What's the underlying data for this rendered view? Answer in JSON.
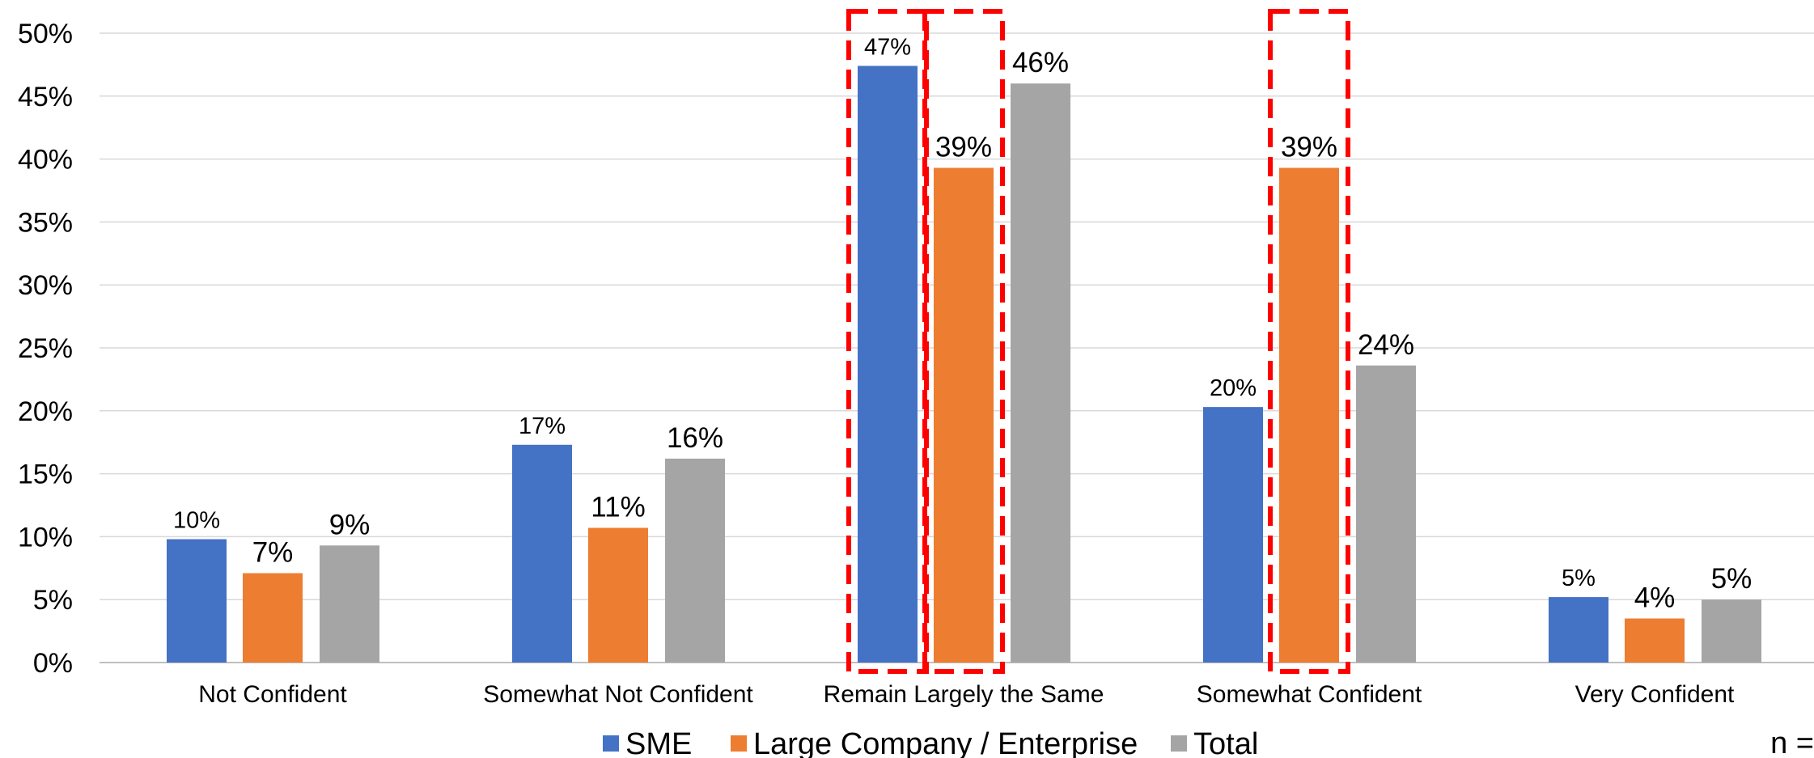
{
  "chart_data": {
    "type": "bar",
    "categories": [
      "Not Confident",
      "Somewhat Not Confident",
      "Remain Largely the Same",
      "Somewhat Confident",
      "Very Confident"
    ],
    "series": [
      {
        "name": "SME",
        "color": "#4472C4",
        "values": [
          9.8,
          17.3,
          47.4,
          20.3,
          5.2
        ],
        "labels": [
          "10%",
          "17%",
          "47%",
          "20%",
          "5%"
        ]
      },
      {
        "name": "Large Company / Enterprise",
        "color": "#ED7D31",
        "values": [
          7.1,
          10.7,
          39.3,
          39.3,
          3.5
        ],
        "labels": [
          "7%",
          "11%",
          "39%",
          "39%",
          "4%"
        ]
      },
      {
        "name": "Total",
        "color": "#A5A5A5",
        "values": [
          9.3,
          16.2,
          46.0,
          23.6,
          5.0
        ],
        "labels": [
          "9%",
          "16%",
          "46%",
          "24%",
          "5%"
        ]
      }
    ],
    "ylim": [
      0,
      50
    ],
    "yticks": [
      "0%",
      "5%",
      "10%",
      "15%",
      "20%",
      "25%",
      "30%",
      "35%",
      "40%",
      "45%",
      "50%"
    ],
    "grid": true,
    "legend_position": "bottom",
    "highlight_boxes": [
      {
        "category": "Remain Largely the Same",
        "series": "SME",
        "color": "#FF0000"
      },
      {
        "category": "Remain Largely the Same",
        "series": "Large Company / Enterprise",
        "color": "#FF0000"
      },
      {
        "category": "Somewhat Confident",
        "series": "Large Company / Enterprise",
        "color": "#FF0000"
      }
    ],
    "footnote": "n ="
  }
}
